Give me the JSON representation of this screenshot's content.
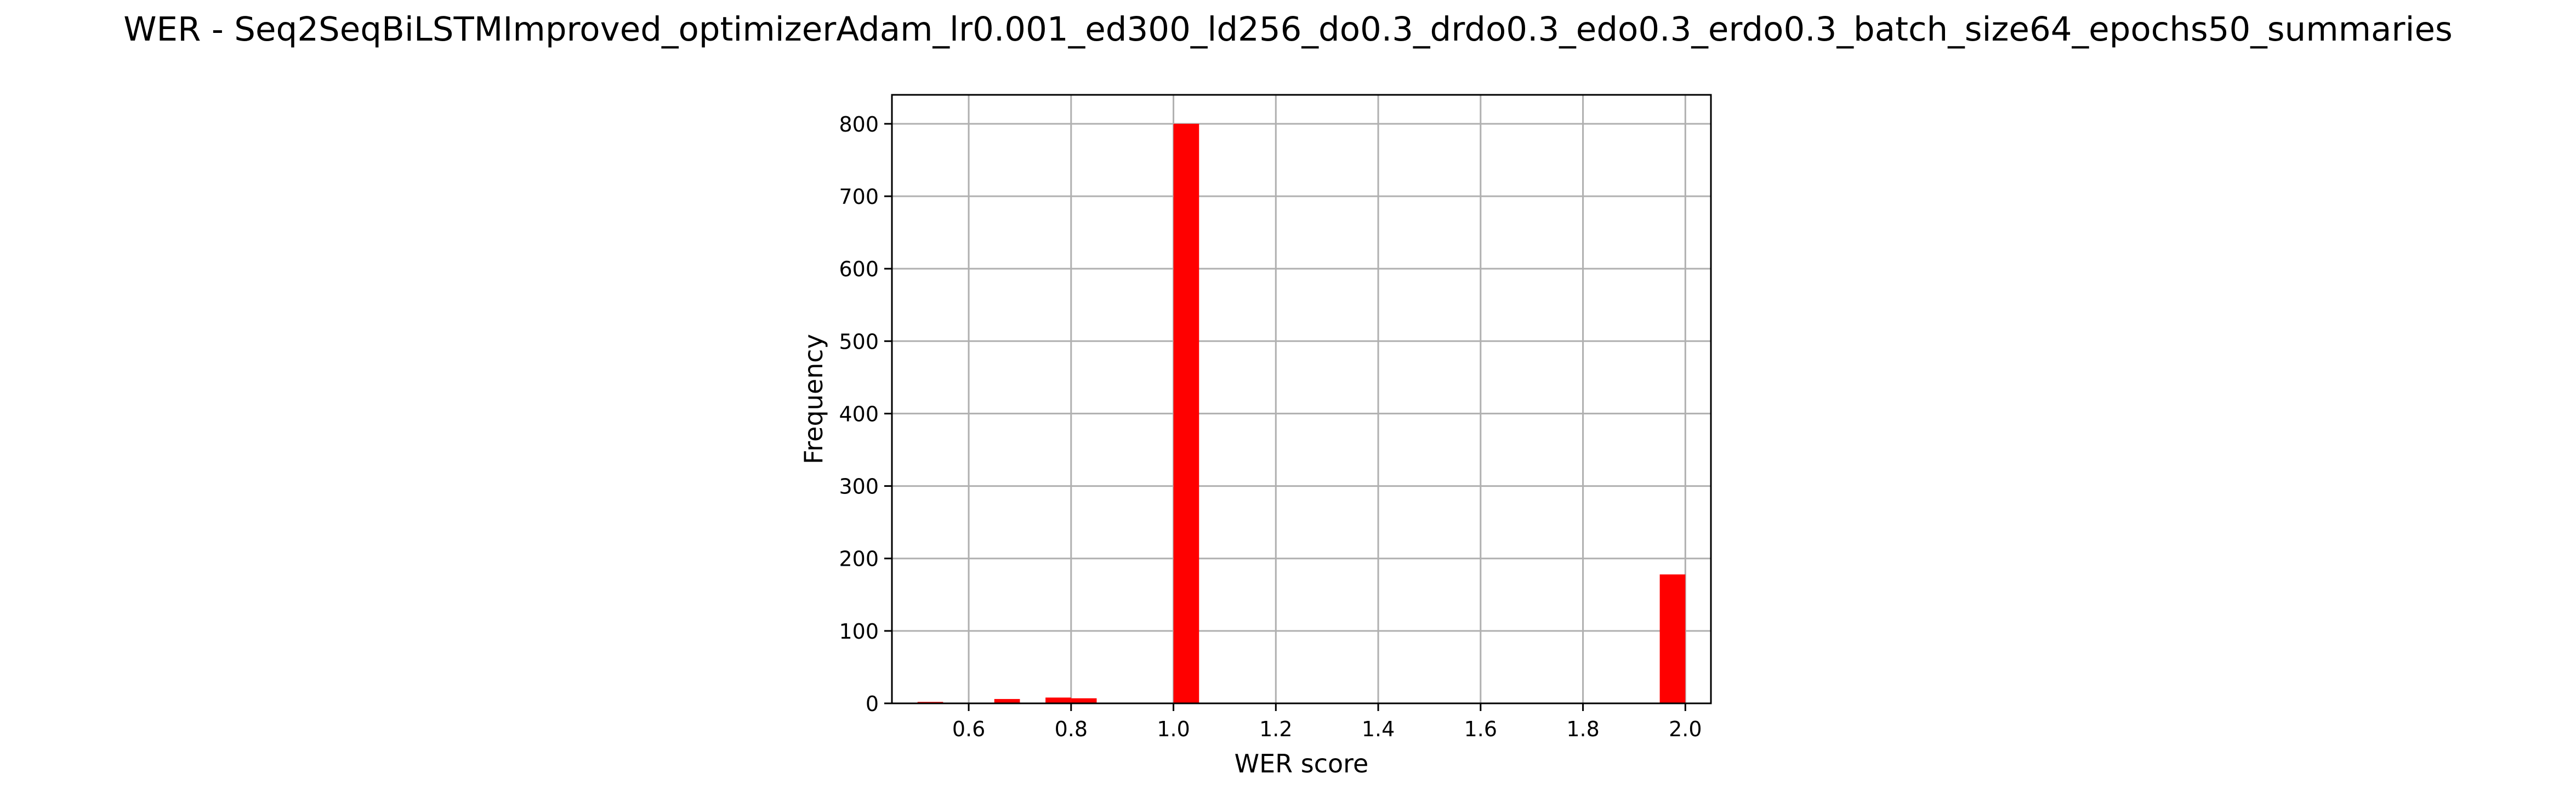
{
  "chart_data": {
    "type": "bar",
    "title": "WER - Seq2SeqBiLSTMImproved_optimizerAdam_lr0.001_ed300_ld256_do0.3_drdo0.3_edo0.3_erdo0.3_batch_size64_epochs50_summaries",
    "xlabel": "WER score",
    "ylabel": "Frequency",
    "xlim": [
      0.45,
      2.05
    ],
    "ylim": [
      0,
      840
    ],
    "xticks": [
      "0.6",
      "0.8",
      "1.0",
      "1.2",
      "1.4",
      "1.6",
      "1.8",
      "2.0"
    ],
    "yticks": [
      "0",
      "100",
      "200",
      "300",
      "400",
      "500",
      "600",
      "700",
      "800"
    ],
    "grid": true,
    "bar_color": "#ff0000",
    "bin_width": 0.05,
    "bins": [
      {
        "x0": 0.5,
        "x1": 0.55,
        "value": 2
      },
      {
        "x0": 0.55,
        "x1": 0.6,
        "value": 0
      },
      {
        "x0": 0.6,
        "x1": 0.65,
        "value": 0
      },
      {
        "x0": 0.65,
        "x1": 0.7,
        "value": 6
      },
      {
        "x0": 0.7,
        "x1": 0.75,
        "value": 0
      },
      {
        "x0": 0.75,
        "x1": 0.8,
        "value": 8
      },
      {
        "x0": 0.8,
        "x1": 0.85,
        "value": 7
      },
      {
        "x0": 0.85,
        "x1": 0.9,
        "value": 0
      },
      {
        "x0": 0.9,
        "x1": 0.95,
        "value": 0
      },
      {
        "x0": 0.95,
        "x1": 1.0,
        "value": 0
      },
      {
        "x0": 1.0,
        "x1": 1.05,
        "value": 800
      },
      {
        "x0": 1.95,
        "x1": 2.0,
        "value": 178
      }
    ]
  }
}
